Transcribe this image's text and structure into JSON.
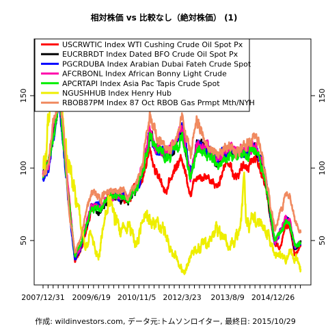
{
  "chart_data": {
    "type": "line",
    "title": "相対株価 vs 比較なし（絶対株価） (1)",
    "caption": "作成: wildinvestors.com, データ元:トムソンロイター, 最終日: 2015/10/29",
    "xlabel": "",
    "ylabel": "",
    "xlim": [
      "2007-12-31",
      "2015-10-29"
    ],
    "ylim": [
      20,
      190
    ],
    "y_ticks": [
      50,
      100,
      150
    ],
    "y_axis_sides": [
      "left",
      "right"
    ],
    "x_ticks": [
      "2007/12/31",
      "2009/6/19",
      "2010/11/5",
      "2012/3/23",
      "2013/8/9",
      "2014/12/26"
    ],
    "x_tick_dates": [
      "2007-12-31",
      "2009-06-19",
      "2010-11-05",
      "2012-03-23",
      "2013-08-09",
      "2014-12-26"
    ],
    "grid": false,
    "legend_position": "top-left",
    "series": [
      {
        "name": "USCRWTIC Index WTI Cushing Crude Oil Spot Px",
        "color": "#ff0000",
        "points": [
          [
            "2007-12-31",
            96
          ],
          [
            "2008-03-01",
            104
          ],
          [
            "2008-05-01",
            128
          ],
          [
            "2008-07-03",
            151
          ],
          [
            "2008-08-15",
            118
          ],
          [
            "2008-10-15",
            78
          ],
          [
            "2008-12-20",
            36
          ],
          [
            "2009-02-15",
            41
          ],
          [
            "2009-06-19",
            72
          ],
          [
            "2009-10-01",
            73
          ],
          [
            "2010-01-01",
            83
          ],
          [
            "2010-05-01",
            80
          ],
          [
            "2010-08-01",
            78
          ],
          [
            "2010-11-05",
            88
          ],
          [
            "2011-01-01",
            92
          ],
          [
            "2011-04-01",
            112
          ],
          [
            "2011-06-01",
            98
          ],
          [
            "2011-10-01",
            84
          ],
          [
            "2012-01-01",
            100
          ],
          [
            "2012-03-23",
            107
          ],
          [
            "2012-06-25",
            82
          ],
          [
            "2012-09-01",
            96
          ],
          [
            "2013-01-01",
            94
          ],
          [
            "2013-04-15",
            88
          ],
          [
            "2013-08-09",
            106
          ],
          [
            "2013-11-01",
            94
          ],
          [
            "2014-01-01",
            98
          ],
          [
            "2014-06-20",
            108
          ],
          [
            "2014-09-01",
            95
          ],
          [
            "2014-10-15",
            82
          ],
          [
            "2015-01-15",
            48
          ],
          [
            "2015-03-15",
            45
          ],
          [
            "2015-05-15",
            60
          ],
          [
            "2015-06-30",
            59
          ],
          [
            "2015-08-24",
            40
          ],
          [
            "2015-10-29",
            46
          ]
        ]
      },
      {
        "name": "EUCRBRDT Index Dated BFO Crude Oil Spot Px",
        "color": "#000000",
        "points": [
          [
            "2007-12-31",
            96
          ],
          [
            "2008-03-01",
            102
          ],
          [
            "2008-05-01",
            127
          ],
          [
            "2008-07-03",
            150
          ],
          [
            "2008-08-15",
            116
          ],
          [
            "2008-10-15",
            76
          ],
          [
            "2008-12-20",
            37
          ],
          [
            "2009-02-15",
            44
          ],
          [
            "2009-06-19",
            73
          ],
          [
            "2009-10-01",
            71
          ],
          [
            "2010-01-01",
            79
          ],
          [
            "2010-05-01",
            79
          ],
          [
            "2010-08-01",
            78
          ],
          [
            "2010-11-05",
            88
          ],
          [
            "2011-01-01",
            97
          ],
          [
            "2011-04-01",
            124
          ],
          [
            "2011-06-01",
            113
          ],
          [
            "2011-10-01",
            108
          ],
          [
            "2012-01-01",
            114
          ],
          [
            "2012-03-23",
            126
          ],
          [
            "2012-06-25",
            92
          ],
          [
            "2012-09-01",
            116
          ],
          [
            "2013-01-01",
            114
          ],
          [
            "2013-04-15",
            102
          ],
          [
            "2013-08-09",
            112
          ],
          [
            "2013-11-01",
            110
          ],
          [
            "2014-01-01",
            110
          ],
          [
            "2014-06-20",
            116
          ],
          [
            "2014-09-01",
            101
          ],
          [
            "2014-10-15",
            86
          ],
          [
            "2015-01-15",
            48
          ],
          [
            "2015-03-15",
            54
          ],
          [
            "2015-05-15",
            65
          ],
          [
            "2015-06-30",
            62
          ],
          [
            "2015-08-24",
            44
          ],
          [
            "2015-10-29",
            49
          ]
        ]
      },
      {
        "name": "PGCRDUBA Index Arabian Dubai Fateh Crude Spot",
        "color": "#0000ff",
        "points": [
          [
            "2007-12-31",
            92
          ],
          [
            "2008-03-01",
            99
          ],
          [
            "2008-05-01",
            122
          ],
          [
            "2008-07-03",
            146
          ],
          [
            "2008-08-15",
            114
          ],
          [
            "2008-10-15",
            72
          ],
          [
            "2008-12-20",
            37
          ],
          [
            "2009-02-15",
            43
          ],
          [
            "2009-06-19",
            72
          ],
          [
            "2009-10-01",
            75
          ],
          [
            "2010-01-01",
            80
          ],
          [
            "2010-05-01",
            81
          ],
          [
            "2010-08-01",
            78
          ],
          [
            "2010-11-05",
            88
          ],
          [
            "2011-01-01",
            96
          ],
          [
            "2011-04-01",
            124
          ],
          [
            "2011-06-01",
            112
          ],
          [
            "2011-10-01",
            110
          ],
          [
            "2012-01-01",
            116
          ],
          [
            "2012-03-23",
            128
          ],
          [
            "2012-06-25",
            96
          ],
          [
            "2012-09-01",
            116
          ],
          [
            "2013-01-01",
            114
          ],
          [
            "2013-04-15",
            106
          ],
          [
            "2013-08-09",
            112
          ],
          [
            "2013-11-01",
            112
          ],
          [
            "2014-01-01",
            110
          ],
          [
            "2014-06-20",
            114
          ],
          [
            "2014-09-01",
            104
          ],
          [
            "2014-10-15",
            88
          ],
          [
            "2015-01-15",
            48
          ],
          [
            "2015-03-15",
            56
          ],
          [
            "2015-05-15",
            66
          ],
          [
            "2015-06-30",
            62
          ],
          [
            "2015-08-24",
            45
          ],
          [
            "2015-10-29",
            48
          ]
        ]
      },
      {
        "name": "AFCRBONL Index African Bonny Light Crude",
        "color": "#ff00aa",
        "points": [
          [
            "2007-12-31",
            95
          ],
          [
            "2008-03-01",
            103
          ],
          [
            "2008-05-01",
            128
          ],
          [
            "2008-07-03",
            152
          ],
          [
            "2008-08-15",
            118
          ],
          [
            "2008-10-15",
            77
          ],
          [
            "2008-12-20",
            38
          ],
          [
            "2009-02-15",
            45
          ],
          [
            "2009-06-19",
            74
          ],
          [
            "2009-10-01",
            72
          ],
          [
            "2010-01-01",
            80
          ],
          [
            "2010-05-01",
            80
          ],
          [
            "2010-08-01",
            79
          ],
          [
            "2010-11-05",
            89
          ],
          [
            "2011-01-01",
            98
          ],
          [
            "2011-04-01",
            126
          ],
          [
            "2011-06-01",
            115
          ],
          [
            "2011-10-01",
            110
          ],
          [
            "2012-01-01",
            116
          ],
          [
            "2012-03-23",
            128
          ],
          [
            "2012-06-25",
            93
          ],
          [
            "2012-09-01",
            117
          ],
          [
            "2013-01-01",
            115
          ],
          [
            "2013-04-15",
            103
          ],
          [
            "2013-08-09",
            114
          ],
          [
            "2013-11-01",
            111
          ],
          [
            "2014-01-01",
            111
          ],
          [
            "2014-06-20",
            117
          ],
          [
            "2014-09-01",
            102
          ],
          [
            "2014-10-15",
            87
          ],
          [
            "2015-01-15",
            49
          ],
          [
            "2015-03-15",
            55
          ],
          [
            "2015-05-15",
            66
          ],
          [
            "2015-06-30",
            63
          ],
          [
            "2015-08-24",
            45
          ],
          [
            "2015-10-29",
            50
          ]
        ]
      },
      {
        "name": "APCRTAPI Index Asia Pac Tapis Crude Spot",
        "color": "#00ee00",
        "points": [
          [
            "2007-12-31",
            95
          ],
          [
            "2008-03-01",
            103
          ],
          [
            "2008-05-01",
            124
          ],
          [
            "2008-07-03",
            148
          ],
          [
            "2008-08-15",
            116
          ],
          [
            "2008-10-15",
            74
          ],
          [
            "2008-12-20",
            40
          ],
          [
            "2009-02-15",
            46
          ],
          [
            "2009-06-19",
            72
          ],
          [
            "2009-10-01",
            73
          ],
          [
            "2010-01-01",
            80
          ],
          [
            "2010-05-01",
            80
          ],
          [
            "2010-08-01",
            77
          ],
          [
            "2010-11-05",
            87
          ],
          [
            "2011-01-01",
            96
          ],
          [
            "2011-04-01",
            122
          ],
          [
            "2011-06-01",
            113
          ],
          [
            "2011-10-01",
            108
          ],
          [
            "2012-01-01",
            112
          ],
          [
            "2012-03-23",
            122
          ],
          [
            "2012-06-25",
            94
          ],
          [
            "2012-09-01",
            112
          ],
          [
            "2013-01-01",
            110
          ],
          [
            "2013-04-15",
            102
          ],
          [
            "2013-08-09",
            108
          ],
          [
            "2013-11-01",
            108
          ],
          [
            "2014-01-01",
            108
          ],
          [
            "2014-06-20",
            112
          ],
          [
            "2014-09-01",
            100
          ],
          [
            "2014-10-15",
            86
          ],
          [
            "2015-01-15",
            50
          ],
          [
            "2015-03-15",
            55
          ],
          [
            "2015-05-15",
            64
          ],
          [
            "2015-06-30",
            62
          ],
          [
            "2015-08-24",
            47
          ],
          [
            "2015-10-29",
            49
          ]
        ]
      },
      {
        "name": "NGUSHHUB Index Henry Hub",
        "color": "#eeee00",
        "points": [
          [
            "2007-12-31",
            100
          ],
          [
            "2008-02-15",
            118
          ],
          [
            "2008-04-15",
            150
          ],
          [
            "2008-06-25",
            183
          ],
          [
            "2008-08-15",
            130
          ],
          [
            "2008-10-15",
            98
          ],
          [
            "2008-12-20",
            80
          ],
          [
            "2009-02-15",
            62
          ],
          [
            "2009-04-15",
            48
          ],
          [
            "2009-06-19",
            52
          ],
          [
            "2009-08-25",
            40
          ],
          [
            "2009-09-05",
            36
          ],
          [
            "2009-11-01",
            62
          ],
          [
            "2010-01-08",
            83
          ],
          [
            "2010-03-01",
            66
          ],
          [
            "2010-05-01",
            58
          ],
          [
            "2010-08-01",
            62
          ],
          [
            "2010-11-05",
            50
          ],
          [
            "2011-01-01",
            62
          ],
          [
            "2011-06-01",
            64
          ],
          [
            "2011-10-01",
            52
          ],
          [
            "2012-01-01",
            40
          ],
          [
            "2012-04-20",
            27
          ],
          [
            "2012-07-01",
            40
          ],
          [
            "2012-11-01",
            50
          ],
          [
            "2013-01-01",
            48
          ],
          [
            "2013-04-15",
            58
          ],
          [
            "2013-08-09",
            48
          ],
          [
            "2013-11-01",
            52
          ],
          [
            "2014-01-01",
            62
          ],
          [
            "2014-02-10",
            100
          ],
          [
            "2014-03-01",
            62
          ],
          [
            "2014-06-20",
            62
          ],
          [
            "2014-10-15",
            54
          ],
          [
            "2015-01-15",
            40
          ],
          [
            "2015-04-15",
            37
          ],
          [
            "2015-06-30",
            40
          ],
          [
            "2015-08-24",
            39
          ],
          [
            "2015-10-29",
            31
          ]
        ]
      },
      {
        "name": "RBOB87PM Index 87 Oct RBOB Gas Prmpt Mth/NYH",
        "color": "#f08a60",
        "points": [
          [
            "2007-12-31",
            93
          ],
          [
            "2008-03-01",
            104
          ],
          [
            "2008-05-01",
            135
          ],
          [
            "2008-07-03",
            150
          ],
          [
            "2008-08-15",
            125
          ],
          [
            "2008-10-15",
            70
          ],
          [
            "2008-12-20",
            42
          ],
          [
            "2009-02-15",
            50
          ],
          [
            "2009-06-19",
            86
          ],
          [
            "2009-10-01",
            79
          ],
          [
            "2010-01-01",
            86
          ],
          [
            "2010-05-01",
            86
          ],
          [
            "2010-08-01",
            80
          ],
          [
            "2010-11-05",
            91
          ],
          [
            "2011-01-01",
            100
          ],
          [
            "2011-04-01",
            135
          ],
          [
            "2011-06-01",
            122
          ],
          [
            "2011-10-01",
            112
          ],
          [
            "2012-01-01",
            115
          ],
          [
            "2012-03-23",
            135
          ],
          [
            "2012-06-25",
            108
          ],
          [
            "2012-09-01",
            132
          ],
          [
            "2013-01-01",
            116
          ],
          [
            "2013-04-15",
            112
          ],
          [
            "2013-08-09",
            115
          ],
          [
            "2013-11-01",
            110
          ],
          [
            "2014-01-01",
            112
          ],
          [
            "2014-06-20",
            122
          ],
          [
            "2014-09-01",
            108
          ],
          [
            "2014-10-15",
            92
          ],
          [
            "2015-01-15",
            56
          ],
          [
            "2015-03-15",
            70
          ],
          [
            "2015-05-15",
            82
          ],
          [
            "2015-06-30",
            82
          ],
          [
            "2015-08-24",
            64
          ],
          [
            "2015-10-29",
            56
          ]
        ]
      }
    ]
  }
}
